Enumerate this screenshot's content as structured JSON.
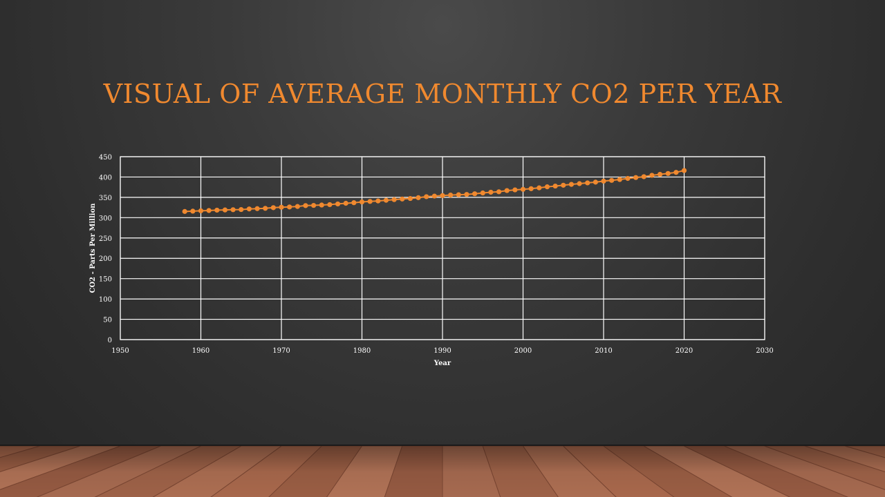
{
  "slide": {
    "title": "VISUAL OF AVERAGE MONTHLY CO2 PER YEAR"
  },
  "colors": {
    "title": "#f0892f",
    "series": "#f0892f",
    "grid": "#ffffff",
    "background": "#333333",
    "floor": "#a0644a"
  },
  "chart_data": {
    "type": "scatter",
    "xlabel": "Year",
    "ylabel": "CO2 - Parts Per Million",
    "xlim": [
      1950,
      2030
    ],
    "ylim": [
      0,
      450
    ],
    "xticks": [
      1950,
      1960,
      1970,
      1980,
      1990,
      2000,
      2010,
      2020,
      2030
    ],
    "yticks": [
      0,
      50,
      100,
      150,
      200,
      250,
      300,
      350,
      400,
      450
    ],
    "grid": true,
    "markers": "circle",
    "line": "straight",
    "series": [
      {
        "x": [
          1958,
          1959,
          1960,
          1961,
          1962,
          1963,
          1964,
          1965,
          1966,
          1967,
          1968,
          1969,
          1970,
          1971,
          1972,
          1973,
          1974,
          1975,
          1976,
          1977,
          1978,
          1979,
          1980,
          1981,
          1982,
          1983,
          1984,
          1985,
          1986,
          1987,
          1988,
          1989,
          1990,
          1991,
          1992,
          1993,
          1994,
          1995,
          1996,
          1997,
          1998,
          1999,
          2000,
          2001,
          2002,
          2003,
          2004,
          2005,
          2006,
          2007,
          2008,
          2009,
          2010,
          2011,
          2012,
          2013,
          2014,
          2015,
          2016,
          2017,
          2018,
          2019,
          2020
        ],
        "y": [
          315.2,
          316.0,
          316.9,
          317.6,
          318.5,
          319.0,
          319.6,
          320.0,
          321.4,
          322.2,
          323.0,
          324.6,
          325.7,
          326.3,
          327.5,
          329.7,
          330.2,
          331.1,
          332.1,
          333.8,
          335.4,
          336.8,
          338.7,
          339.9,
          341.1,
          342.8,
          344.4,
          345.9,
          347.2,
          349.2,
          351.6,
          353.1,
          354.4,
          355.6,
          356.4,
          357.1,
          358.8,
          360.8,
          362.6,
          363.7,
          366.7,
          368.4,
          369.7,
          371.3,
          373.4,
          375.9,
          377.7,
          379.8,
          381.9,
          383.8,
          385.6,
          387.4,
          389.9,
          391.7,
          393.9,
          396.5,
          398.7,
          400.8,
          404.2,
          406.6,
          408.7,
          411.4,
          416.0
        ]
      }
    ]
  }
}
